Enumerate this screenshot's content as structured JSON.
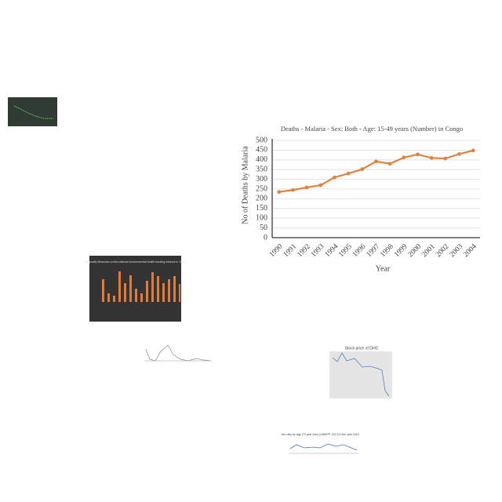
{
  "chart_data": {
    "type": "line",
    "title": "Deaths - Malaria - Sex: Both - Age: 15-49 years (Number) in Congo",
    "x_label": "Year",
    "y_label": "No of Deaths by Malaria",
    "categories": [
      "1990",
      "1991",
      "1992",
      "1993",
      "1994",
      "1995",
      "1996",
      "1997",
      "1998",
      "1999",
      "2000",
      "2001",
      "2002",
      "2003",
      "2004"
    ],
    "values": [
      235,
      245,
      258,
      270,
      310,
      330,
      352,
      392,
      380,
      412,
      428,
      410,
      407,
      430,
      448
    ],
    "color": "#dd8440",
    "ylim": [
      0,
      500
    ],
    "yticks": [
      0,
      50,
      100,
      150,
      200,
      250,
      300,
      350,
      400,
      450,
      500
    ],
    "grid": true
  },
  "thumbnails": [
    {
      "title": "Air quality Measures on the national environmental health tracking network in 2004"
    },
    {
      "title": "Stock price of GHC"
    },
    {
      "title": "Sex ratio by age (70 year olds) (UNWPP, 2017) in the year 2010"
    }
  ]
}
